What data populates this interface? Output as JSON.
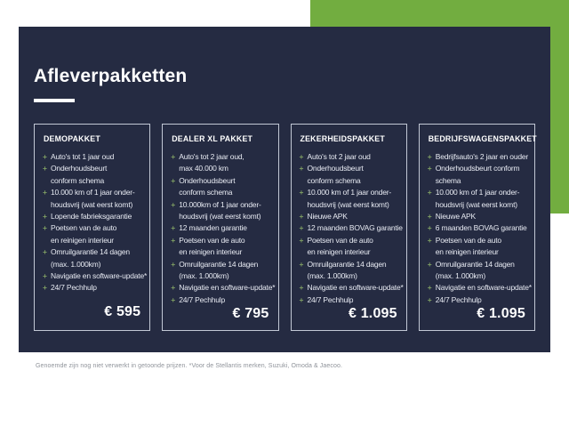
{
  "page": {
    "title": "Afleverpakketten",
    "footnote": "Genoemde zijn nog niet verwerkt in getoonde prijzen. *Voor de Stellantis merken, Suzuki, Omoda & Jaecoo."
  },
  "colors": {
    "panel_navy": "#252b42",
    "accent_green": "#72ad40",
    "bullet_plus": "#7f9f63"
  },
  "bullet_glyph": "+",
  "cards": [
    {
      "title": "DEMOPAKKET",
      "price": "€ 595",
      "items": [
        "Auto's tot 1 jaar oud",
        "Onderhoudsbeurt\nconform schema",
        "10.000 km of 1 jaar onder-\nhoudsvrij (wat eerst komt)",
        "Lopende fabrieksgarantie",
        "Poetsen van de auto\nen reinigen interieur",
        "Omruilgarantie 14 dagen\n(max. 1.000km)",
        "Navigatie en software-update*",
        "24/7 Pechhulp"
      ]
    },
    {
      "title": "DEALER XL PAKKET",
      "price": "€ 795",
      "items": [
        "Auto's tot 2 jaar oud,\nmax 40.000 km",
        "Onderhoudsbeurt\nconform schema",
        "10.000km of 1 jaar onder-\nhoudsvrij (wat eerst komt)",
        "12 maanden garantie",
        "Poetsen van de auto\nen reinigen interieur",
        "Omruilgarantie 14 dagen\n(max. 1.000km)",
        "Navigatie en software-update*",
        "24/7 Pechhulp"
      ]
    },
    {
      "title": "ZEKERHEIDSPAKKET",
      "price": "€ 1.095",
      "items": [
        "Auto's tot 2 jaar oud",
        "Onderhoudsbeurt\nconform schema",
        "10.000 km of 1 jaar onder-\nhoudsvrij (wat eerst komt)",
        "Nieuwe APK",
        "12 maanden BOVAG garantie",
        "Poetsen van de auto\nen reinigen interieur",
        "Omruilgarantie 14 dagen\n(max. 1.000km)",
        "Navigatie en software-update*",
        "24/7 Pechhulp"
      ]
    },
    {
      "title": "BEDRIJFSWAGENSPAKKET",
      "price": "€ 1.095",
      "items": [
        "Bedrijfsauto's 2 jaar en ouder",
        "Onderhoudsbeurt conform\nschema",
        "10.000 km of 1 jaar onder-\nhoudsvrij (wat eerst komt)",
        "Nieuwe APK",
        "6 maanden BOVAG garantie",
        "Poetsen van de auto\nen reinigen interieur",
        "Omruilgarantie 14 dagen\n(max. 1.000km)",
        "Navigatie en software-update*",
        "24/7 Pechhulp"
      ]
    }
  ]
}
